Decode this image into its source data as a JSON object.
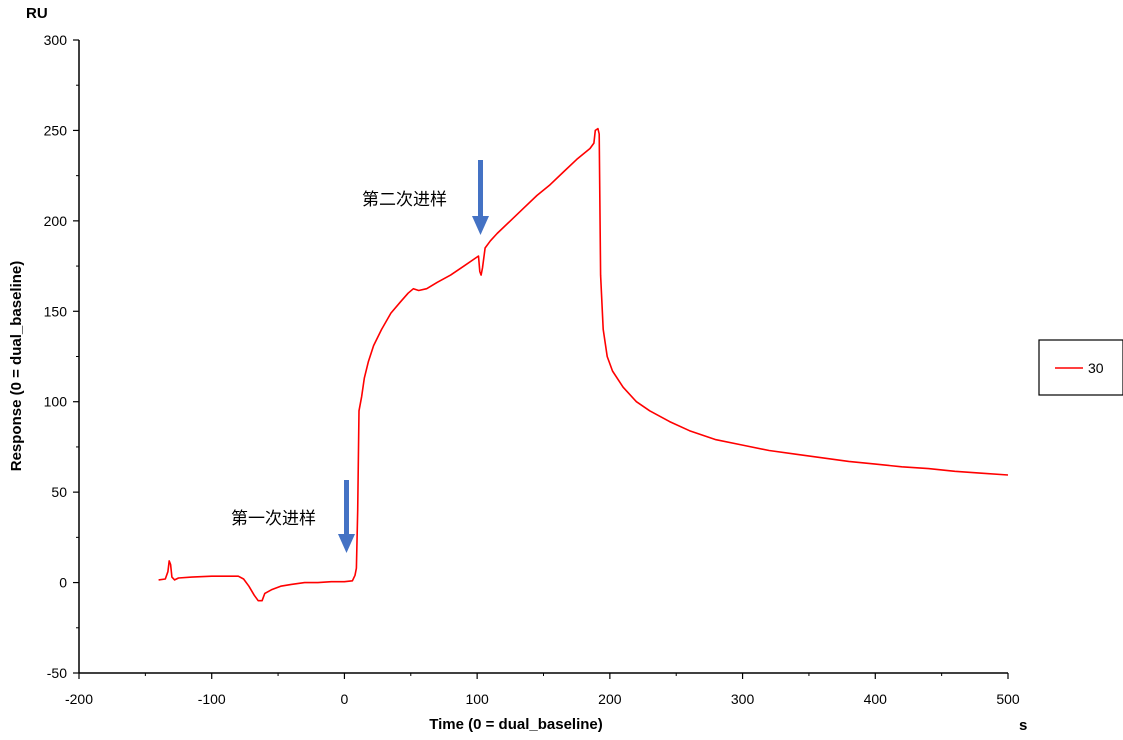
{
  "chart_data": {
    "type": "line",
    "xlabel": "Time (0 = dual_baseline)",
    "x_unit": "s",
    "ylabel": "Response (0 = dual_baseline)",
    "y_unit": "RU",
    "xlim": [
      -200,
      500
    ],
    "ylim": [
      -50,
      300
    ],
    "x_ticks": [
      -200,
      -100,
      0,
      100,
      200,
      300,
      400,
      500
    ],
    "y_ticks": [
      -50,
      0,
      50,
      100,
      150,
      200,
      250,
      300
    ],
    "grid": false,
    "legend": {
      "placement": "right",
      "entries": [
        "30"
      ]
    },
    "series": [
      {
        "name": "30",
        "color": "#ff0000",
        "points": [
          [
            -140,
            1.5
          ],
          [
            -135,
            2
          ],
          [
            -133,
            6
          ],
          [
            -132,
            12
          ],
          [
            -131,
            10
          ],
          [
            -130,
            3
          ],
          [
            -128,
            1.5
          ],
          [
            -125,
            2.5
          ],
          [
            -115,
            3
          ],
          [
            -100,
            3.5
          ],
          [
            -90,
            3.5
          ],
          [
            -80,
            3.5
          ],
          [
            -76,
            2
          ],
          [
            -72,
            -2
          ],
          [
            -68,
            -7
          ],
          [
            -65,
            -10
          ],
          [
            -62,
            -10
          ],
          [
            -60,
            -6
          ],
          [
            -55,
            -4
          ],
          [
            -48,
            -2
          ],
          [
            -40,
            -1
          ],
          [
            -30,
            0
          ],
          [
            -20,
            0
          ],
          [
            -10,
            0.5
          ],
          [
            0,
            0.5
          ],
          [
            6,
            1
          ],
          [
            8,
            4
          ],
          [
            9,
            8
          ],
          [
            10,
            40
          ],
          [
            11,
            95
          ],
          [
            13,
            103
          ],
          [
            15,
            113
          ],
          [
            18,
            122
          ],
          [
            22,
            131
          ],
          [
            28,
            140
          ],
          [
            35,
            149
          ],
          [
            42,
            155
          ],
          [
            48,
            160
          ],
          [
            52,
            162.5
          ],
          [
            56,
            161.5
          ],
          [
            62,
            162.5
          ],
          [
            70,
            166
          ],
          [
            80,
            170
          ],
          [
            90,
            175
          ],
          [
            100,
            180
          ],
          [
            101,
            180.5
          ],
          [
            102,
            172
          ],
          [
            103,
            170
          ],
          [
            104,
            174
          ],
          [
            106,
            185
          ],
          [
            110,
            189
          ],
          [
            115,
            193
          ],
          [
            125,
            200
          ],
          [
            135,
            207
          ],
          [
            145,
            214
          ],
          [
            155,
            220
          ],
          [
            165,
            227
          ],
          [
            175,
            234
          ],
          [
            185,
            240
          ],
          [
            188,
            243
          ],
          [
            189,
            250
          ],
          [
            191,
            251
          ],
          [
            192,
            248
          ],
          [
            193,
            170
          ],
          [
            195,
            140
          ],
          [
            198,
            125
          ],
          [
            202,
            117
          ],
          [
            210,
            108
          ],
          [
            220,
            100
          ],
          [
            230,
            95
          ],
          [
            245,
            89
          ],
          [
            260,
            84
          ],
          [
            280,
            79
          ],
          [
            300,
            76
          ],
          [
            320,
            73
          ],
          [
            340,
            71
          ],
          [
            360,
            69
          ],
          [
            380,
            67
          ],
          [
            400,
            65.5
          ],
          [
            420,
            64
          ],
          [
            440,
            63
          ],
          [
            460,
            61.5
          ],
          [
            480,
            60.5
          ],
          [
            500,
            59.5
          ]
        ]
      }
    ],
    "annotations": [
      {
        "text": "第一次进样",
        "x": 0,
        "y": 0
      },
      {
        "text": "第二次进样",
        "x": 102,
        "y": 182
      }
    ]
  }
}
